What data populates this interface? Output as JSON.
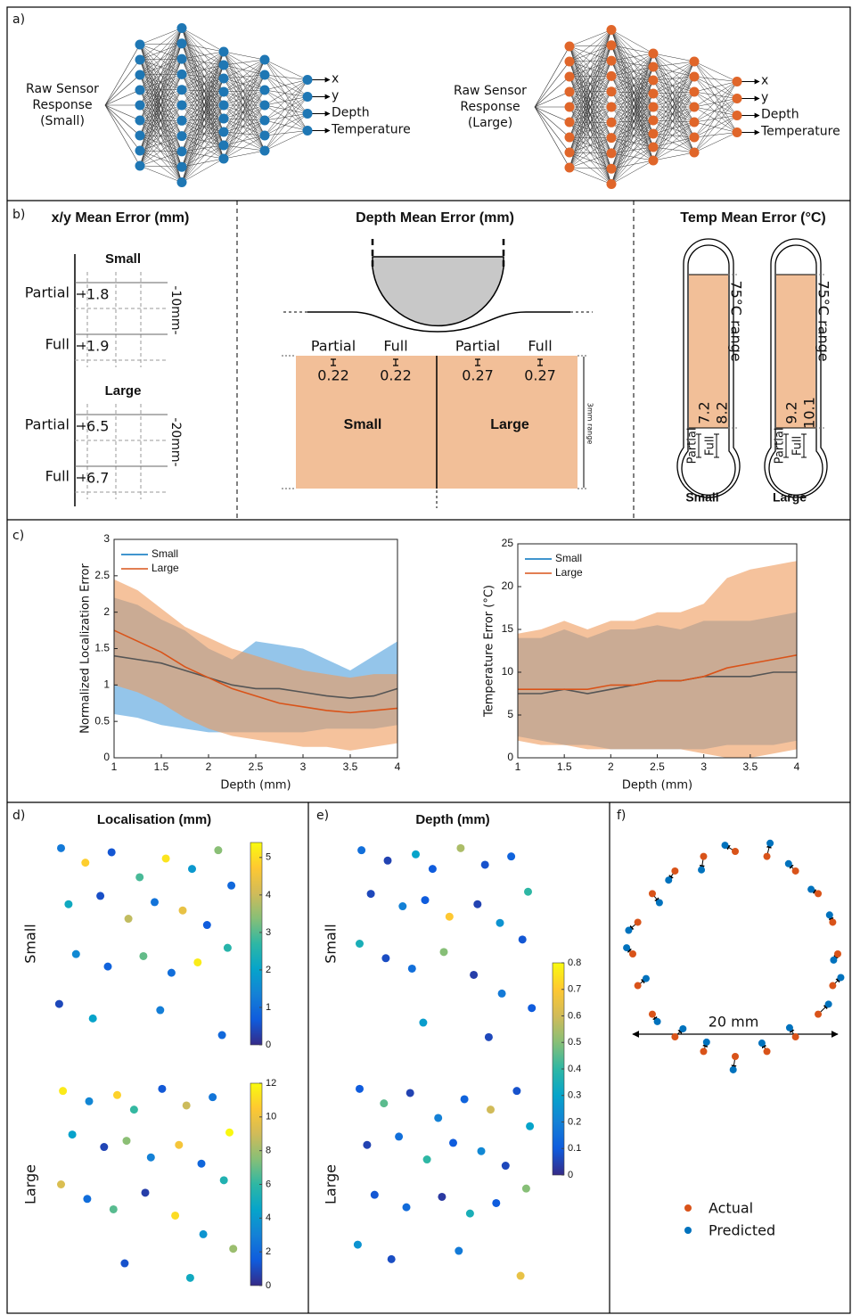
{
  "panel_labels": [
    "a)",
    "b)",
    "c)",
    "d)",
    "e)",
    "f)"
  ],
  "networks": [
    {
      "input_label": [
        "Raw Sensor",
        "Response",
        "(Small)"
      ],
      "outputs": [
        "x",
        "y",
        "Depth",
        "Temperature"
      ],
      "color": "#1f77b4"
    },
    {
      "input_label": [
        "Raw Sensor",
        "Response",
        "(Large)"
      ],
      "outputs": [
        "x",
        "y",
        "Depth",
        "Temperature"
      ],
      "color": "#e0662a"
    }
  ],
  "xy_error": {
    "title": "x/y Mean Error (mm)",
    "groups": [
      {
        "name": "Small",
        "scale_label": "-10mm-",
        "rows": [
          {
            "label": "Partial",
            "value": 1.8
          },
          {
            "label": "Full",
            "value": 1.9
          }
        ]
      },
      {
        "name": "Large",
        "scale_label": "-20mm-",
        "rows": [
          {
            "label": "Partial",
            "value": 6.5
          },
          {
            "label": "Full",
            "value": 6.7
          }
        ]
      }
    ]
  },
  "depth_error": {
    "title": "Depth Mean Error (mm)",
    "range_label": "3mm range",
    "groups": [
      {
        "name": "Small",
        "rows": [
          {
            "label": "Partial",
            "value": 0.22
          },
          {
            "label": "Full",
            "value": 0.22
          }
        ]
      },
      {
        "name": "Large",
        "rows": [
          {
            "label": "Partial",
            "value": 0.27
          },
          {
            "label": "Full",
            "value": 0.27
          }
        ]
      }
    ]
  },
  "temp_error": {
    "title": "Temp Mean Error (°C)",
    "range_label": "75°C range",
    "groups": [
      {
        "name": "Small",
        "rows": [
          {
            "label": "Partial",
            "value": 7.2
          },
          {
            "label": "Full",
            "value": 8.2
          }
        ]
      },
      {
        "name": "Large",
        "rows": [
          {
            "label": "Partial",
            "value": 9.2
          },
          {
            "label": "Full",
            "value": 10.1
          }
        ]
      }
    ]
  },
  "chart_data": [
    {
      "type": "line",
      "xlabel": "Depth (mm)",
      "ylabel": "Normalized Localization Error",
      "x": [
        1,
        1.25,
        1.5,
        1.75,
        2,
        2.25,
        2.5,
        2.75,
        3,
        3.25,
        3.5,
        3.75,
        4
      ],
      "xlim": [
        1,
        4
      ],
      "xticks": [
        1,
        1.5,
        2,
        2.5,
        3,
        3.5,
        4
      ],
      "ylim": [
        0,
        3
      ],
      "yticks": [
        0,
        0.5,
        1,
        1.5,
        2,
        2.5,
        3
      ],
      "series": [
        {
          "name": "Small",
          "color": "#0072bd",
          "band_color": "#4d9fdc",
          "values": [
            1.4,
            1.35,
            1.3,
            1.2,
            1.1,
            1.0,
            0.95,
            0.95,
            0.9,
            0.85,
            0.82,
            0.85,
            0.95
          ],
          "lower": [
            0.6,
            0.55,
            0.45,
            0.4,
            0.35,
            0.35,
            0.35,
            0.35,
            0.35,
            0.4,
            0.4,
            0.4,
            0.45
          ],
          "upper": [
            2.2,
            2.1,
            1.9,
            1.75,
            1.5,
            1.35,
            1.6,
            1.55,
            1.5,
            1.35,
            1.2,
            1.4,
            1.6
          ]
        },
        {
          "name": "Large",
          "color": "#d95319",
          "band_color": "#ee9a5a",
          "values": [
            1.75,
            1.6,
            1.45,
            1.25,
            1.1,
            0.95,
            0.85,
            0.75,
            0.7,
            0.65,
            0.62,
            0.65,
            0.68
          ],
          "lower": [
            1.0,
            0.9,
            0.75,
            0.55,
            0.4,
            0.3,
            0.25,
            0.2,
            0.15,
            0.15,
            0.1,
            0.15,
            0.2
          ],
          "upper": [
            2.45,
            2.3,
            2.05,
            1.8,
            1.65,
            1.5,
            1.4,
            1.3,
            1.2,
            1.15,
            1.1,
            1.15,
            1.15
          ]
        }
      ]
    },
    {
      "type": "line",
      "xlabel": "Depth (mm)",
      "ylabel": "Temperature Error (°C)",
      "x": [
        1,
        1.25,
        1.5,
        1.75,
        2,
        2.25,
        2.5,
        2.75,
        3,
        3.25,
        3.5,
        3.75,
        4
      ],
      "xlim": [
        1,
        4
      ],
      "xticks": [
        1,
        1.5,
        2,
        2.5,
        3,
        3.5,
        4
      ],
      "ylim": [
        0,
        25
      ],
      "yticks": [
        0,
        5,
        10,
        15,
        20,
        25
      ],
      "series": [
        {
          "name": "Small",
          "color": "#0072bd",
          "band_color": "#4d9fdc",
          "values": [
            7.5,
            7.5,
            8,
            7.5,
            8,
            8.5,
            9,
            9,
            9.5,
            9.5,
            9.5,
            10,
            10
          ],
          "lower": [
            2.5,
            2,
            1.5,
            1.5,
            1,
            1,
            1,
            1,
            1,
            1.5,
            1.5,
            1.5,
            2
          ],
          "upper": [
            14,
            14,
            15,
            14,
            15,
            15,
            15.5,
            15,
            16,
            16,
            16,
            16.5,
            17
          ]
        },
        {
          "name": "Large",
          "color": "#d95319",
          "band_color": "#ee9a5a",
          "values": [
            8,
            8,
            8,
            8,
            8.5,
            8.5,
            9,
            9,
            9.5,
            10.5,
            11,
            11.5,
            12
          ],
          "lower": [
            2,
            1.5,
            1.5,
            1,
            1,
            1,
            1,
            1,
            0.5,
            0,
            0,
            0.5,
            1
          ],
          "upper": [
            14.5,
            15,
            16,
            15,
            16,
            16,
            17,
            17,
            18,
            21,
            22,
            22.5,
            23
          ]
        }
      ]
    },
    {
      "type": "scatter",
      "title": "Localisation (mm)",
      "xlim": [
        0,
        10
      ],
      "ylim": [
        0,
        10
      ],
      "panels": [
        {
          "name": "Small",
          "clim": [
            0,
            5.4
          ],
          "cticks": [
            0,
            1,
            2,
            3,
            4,
            5
          ],
          "x": [
            0.5,
            1.8,
            3.2,
            4.7,
            6.1,
            7.5,
            8.9,
            9.6,
            0.9,
            2.6,
            4.1,
            5.5,
            7.0,
            8.3,
            9.4,
            1.3,
            3.0,
            4.9,
            6.4,
            7.8,
            0.4,
            2.2,
            5.8,
            9.1
          ],
          "y": [
            9.6,
            8.9,
            9.4,
            8.2,
            9.1,
            8.6,
            9.5,
            7.8,
            6.9,
            7.3,
            6.2,
            7.0,
            6.6,
            5.9,
            4.8,
            4.5,
            3.9,
            4.4,
            3.6,
            4.1,
            2.1,
            1.4,
            1.8,
            0.6
          ],
          "c": [
            1.2,
            4.8,
            0.6,
            2.9,
            5.1,
            1.8,
            3.4,
            0.9,
            2.2,
            0.5,
            3.9,
            1.1,
            4.4,
            0.7,
            2.6,
            1.5,
            0.8,
            3.1,
            1.0,
            5.2,
            0.4,
            2.0,
            1.3,
            0.9
          ]
        },
        {
          "name": "Large",
          "clim": [
            0,
            12
          ],
          "cticks": [
            0,
            2,
            4,
            6,
            8,
            10,
            12
          ],
          "x": [
            0.6,
            2.0,
            3.5,
            4.4,
            5.9,
            7.2,
            8.6,
            9.5,
            1.1,
            2.8,
            4.0,
            5.3,
            6.8,
            8.0,
            9.2,
            0.5,
            1.9,
            3.3,
            5.0,
            6.6,
            8.1,
            9.7,
            3.9,
            7.4
          ],
          "y": [
            9.5,
            9.0,
            9.3,
            8.6,
            9.6,
            8.8,
            9.2,
            7.5,
            7.4,
            6.8,
            7.1,
            6.3,
            6.9,
            6.0,
            5.2,
            5.0,
            4.3,
            3.8,
            4.6,
            3.5,
            2.6,
            1.9,
            1.2,
            0.5
          ],
          "c": [
            11.5,
            3.2,
            10.8,
            6.1,
            1.4,
            8.9,
            2.5,
            11.9,
            4.4,
            0.8,
            7.6,
            3.0,
            10.2,
            1.9,
            5.5,
            9.3,
            2.2,
            6.7,
            0.6,
            11.1,
            3.8,
            7.9,
            1.2,
            4.9
          ]
        }
      ]
    },
    {
      "type": "scatter",
      "title": "Depth (mm)",
      "xlim": [
        0,
        10
      ],
      "ylim": [
        0,
        10
      ],
      "clim": [
        0,
        0.8
      ],
      "cticks": [
        0,
        0.1,
        0.2,
        0.3,
        0.4,
        0.5,
        0.6,
        0.7,
        0.8
      ],
      "panels": [
        {
          "name": "Small",
          "x": [
            0.6,
            2.0,
            3.5,
            4.4,
            5.9,
            7.2,
            8.6,
            9.5,
            1.1,
            2.8,
            4.0,
            5.3,
            6.8,
            8.0,
            9.2,
            0.5,
            1.9,
            3.3,
            5.0,
            6.6,
            8.1,
            9.7,
            3.9,
            7.4
          ],
          "y": [
            9.5,
            9.0,
            9.3,
            8.6,
            9.6,
            8.8,
            9.2,
            7.5,
            7.4,
            6.8,
            7.1,
            6.3,
            6.9,
            6.0,
            5.2,
            5.0,
            4.3,
            3.8,
            4.6,
            3.5,
            2.6,
            1.9,
            1.2,
            0.5
          ],
          "c": [
            0.15,
            0.05,
            0.3,
            0.1,
            0.55,
            0.08,
            0.12,
            0.4,
            0.06,
            0.2,
            0.1,
            0.7,
            0.05,
            0.25,
            0.09,
            0.35,
            0.07,
            0.15,
            0.5,
            0.04,
            0.18,
            0.1,
            0.28,
            0.06
          ]
        },
        {
          "name": "Large",
          "x": [
            0.5,
            1.8,
            3.2,
            4.7,
            6.1,
            7.5,
            8.9,
            9.6,
            0.9,
            2.6,
            4.1,
            5.5,
            7.0,
            8.3,
            9.4,
            1.3,
            3.0,
            4.9,
            6.4,
            7.8,
            0.4,
            2.2,
            5.8,
            9.1
          ],
          "y": [
            9.6,
            8.9,
            9.4,
            8.2,
            9.1,
            8.6,
            9.5,
            7.8,
            6.9,
            7.3,
            6.2,
            7.0,
            6.6,
            5.9,
            4.8,
            4.5,
            3.9,
            4.4,
            3.6,
            4.1,
            2.1,
            1.4,
            1.8,
            0.6
          ],
          "c": [
            0.1,
            0.45,
            0.05,
            0.2,
            0.12,
            0.6,
            0.08,
            0.3,
            0.05,
            0.15,
            0.4,
            0.1,
            0.22,
            0.06,
            0.5,
            0.09,
            0.14,
            0.03,
            0.35,
            0.1,
            0.25,
            0.07,
            0.18,
            0.65
          ]
        }
      ]
    },
    {
      "type": "vector",
      "annotation": "20 mm",
      "xlim": [
        -11,
        11
      ],
      "ylim": [
        -11,
        11
      ],
      "series": [
        {
          "name": "Actual",
          "color": "#d95319",
          "x": [
            10,
            9.51,
            8.09,
            5.88,
            3.09,
            0,
            -3.09,
            -5.88,
            -8.09,
            -9.51,
            -10,
            -9.51,
            -8.09,
            -5.88,
            -3.09,
            0,
            3.09,
            5.88,
            8.09,
            9.51
          ],
          "y": [
            0,
            3.09,
            5.88,
            8.09,
            9.51,
            10,
            9.51,
            8.09,
            5.88,
            3.09,
            0,
            -3.09,
            -5.88,
            -8.09,
            -9.51,
            -10,
            -9.51,
            -8.09,
            -5.88,
            -3.09
          ]
        },
        {
          "name": "Predicted",
          "color": "#0072bd",
          "x": [
            9.6,
            9.2,
            7.4,
            5.2,
            3.4,
            -1.0,
            -3.3,
            -6.5,
            -7.4,
            -10.4,
            -10.6,
            -8.7,
            -7.6,
            -5.1,
            -2.8,
            -0.2,
            2.6,
            5.3,
            9.1,
            10.3
          ],
          "y": [
            -0.6,
            3.8,
            6.3,
            8.8,
            10.8,
            10.6,
            8.2,
            7.2,
            5.0,
            2.3,
            0.6,
            -2.4,
            -6.6,
            -7.3,
            -8.6,
            -11.3,
            -8.7,
            -7.2,
            -4.9,
            -2.3
          ]
        }
      ]
    }
  ]
}
